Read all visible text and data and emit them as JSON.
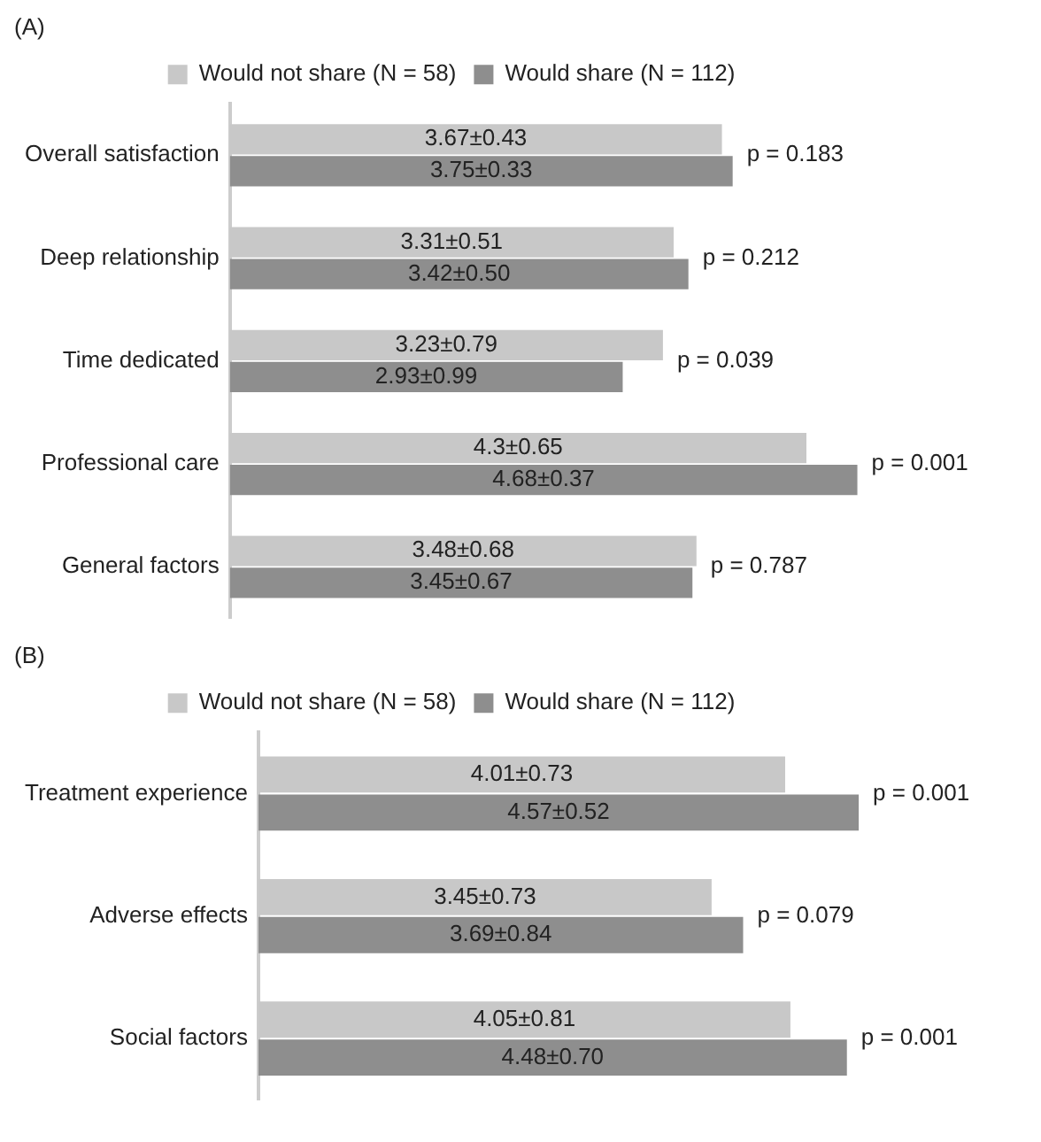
{
  "chart_data": [
    {
      "type": "bar",
      "orientation": "horizontal",
      "title": "(A)",
      "legend": "top",
      "categories": [
        "Overall satisfaction",
        "Deep relationship",
        "Time dedicated",
        "Professional care",
        "General factors"
      ],
      "series": [
        {
          "name": "Would not share (N = 58)",
          "color": "#c8c8c8",
          "values": [
            3.67,
            3.31,
            3.23,
            4.3,
            3.48
          ],
          "value_labels": [
            "3.67±0.43",
            "3.31±0.51",
            "3.23±0.79",
            "4.3±0.65",
            "3.48±0.68"
          ]
        },
        {
          "name": "Would share (N = 112)",
          "color": "#8e8e8e",
          "values": [
            3.75,
            3.42,
            2.93,
            4.68,
            3.45
          ],
          "value_labels": [
            "3.75±0.33",
            "3.42±0.50",
            "2.93±0.99",
            "4.68±0.37",
            "3.45±0.67"
          ]
        }
      ],
      "annotations": [
        "p = 0.183",
        "p = 0.212",
        "p = 0.039",
        "p = 0.001",
        "p = 0.787"
      ]
    },
    {
      "type": "bar",
      "orientation": "horizontal",
      "title": "(B)",
      "legend": "top",
      "categories": [
        "Treatment experience",
        "Adverse effects",
        "Social factors"
      ],
      "series": [
        {
          "name": "Would not share (N = 58)",
          "color": "#c8c8c8",
          "values": [
            4.01,
            3.45,
            4.05
          ],
          "value_labels": [
            "4.01±0.73",
            "3.45±0.73",
            "4.05±0.81"
          ]
        },
        {
          "name": "Would share (N = 112)",
          "color": "#8e8e8e",
          "values": [
            4.57,
            3.69,
            4.48
          ],
          "value_labels": [
            "4.57±0.52",
            "3.69±0.84",
            "4.48±0.70"
          ]
        }
      ],
      "annotations": [
        "p = 0.001",
        "p = 0.079",
        "p = 0.001"
      ]
    }
  ]
}
